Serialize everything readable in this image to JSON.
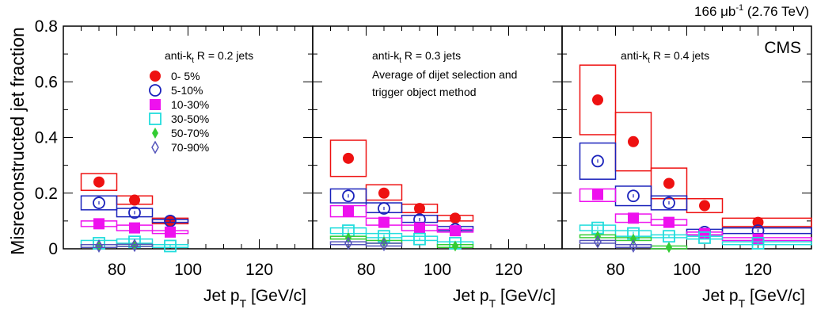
{
  "chart_data": {
    "type": "scatter",
    "ylabel": "Misreconstructed jet fraction",
    "ylim": [
      0,
      0.8
    ],
    "xlim": [
      65,
      135
    ],
    "y_ticks": [
      "0",
      "0.2",
      "0.4",
      "0.6",
      "0.8"
    ],
    "x_ticks": [
      "80",
      "100",
      "120"
    ],
    "xlabel_parts": {
      "main": "Jet p",
      "sub": "T",
      "rest": " [GeV/c]"
    },
    "lumi": {
      "value": "166 μb",
      "sup": "-1",
      "energy": " (2.76 TeV)"
    },
    "experiment": "CMS",
    "legend": {
      "placement": "top-left of first panel",
      "entries": [
        {
          "label": "0- 5%",
          "marker": "filled-circle",
          "color": "#ee1111"
        },
        {
          "label": "5-10%",
          "marker": "open-circle",
          "color": "#1a22bb"
        },
        {
          "label": "10-30%",
          "marker": "filled-square",
          "color": "#ee11ee"
        },
        {
          "label": "30-50%",
          "marker": "open-square",
          "color": "#22dddd"
        },
        {
          "label": "50-70%",
          "marker": "filled-diamond",
          "color": "#33cc33"
        },
        {
          "label": "70-90%",
          "marker": "open-diamond",
          "color": "#5555bb"
        }
      ]
    },
    "panels": [
      {
        "jet_label": {
          "pre": "anti-k",
          "sub": "t",
          "post": " R = 0.2 jets"
        },
        "notes": [],
        "series": [
          {
            "name": "0- 5%",
            "points": [
              {
                "x": 75,
                "y": 0.24,
                "xlo": 70,
                "xhi": 80,
                "ylo": 0.21,
                "yhi": 0.27
              },
              {
                "x": 85,
                "y": 0.175,
                "xlo": 80,
                "xhi": 90,
                "ylo": 0.16,
                "yhi": 0.19
              },
              {
                "x": 95,
                "y": 0.1,
                "xlo": 90,
                "xhi": 100,
                "ylo": 0.09,
                "yhi": 0.11
              }
            ]
          },
          {
            "name": "5-10%",
            "points": [
              {
                "x": 75,
                "y": 0.165,
                "xlo": 70,
                "xhi": 80,
                "ylo": 0.14,
                "yhi": 0.19
              },
              {
                "x": 85,
                "y": 0.13,
                "xlo": 80,
                "xhi": 90,
                "ylo": 0.115,
                "yhi": 0.145
              },
              {
                "x": 95,
                "y": 0.1,
                "xlo": 90,
                "xhi": 100,
                "ylo": 0.095,
                "yhi": 0.105
              }
            ]
          },
          {
            "name": "10-30%",
            "points": [
              {
                "x": 75,
                "y": 0.09,
                "xlo": 70,
                "xhi": 80,
                "ylo": 0.08,
                "yhi": 0.1
              },
              {
                "x": 85,
                "y": 0.075,
                "xlo": 80,
                "xhi": 90,
                "ylo": 0.065,
                "yhi": 0.085
              },
              {
                "x": 95,
                "y": 0.06,
                "xlo": 90,
                "xhi": 100,
                "ylo": 0.055,
                "yhi": 0.065
              }
            ]
          },
          {
            "name": "30-50%",
            "points": [
              {
                "x": 75,
                "y": 0.02,
                "xlo": 70,
                "xhi": 80,
                "ylo": 0.015,
                "yhi": 0.03
              },
              {
                "x": 85,
                "y": 0.025,
                "xlo": 80,
                "xhi": 90,
                "ylo": 0.02,
                "yhi": 0.035
              },
              {
                "x": 95,
                "y": 0.01,
                "xlo": 90,
                "xhi": 100,
                "ylo": 0.005,
                "yhi": 0.015
              }
            ]
          },
          {
            "name": "50-70%",
            "points": [
              {
                "x": 75,
                "y": 0.01,
                "xlo": 70,
                "xhi": 80,
                "ylo": 0.005,
                "yhi": 0.015
              },
              {
                "x": 85,
                "y": 0.012,
                "xlo": 80,
                "xhi": 90,
                "ylo": 0.008,
                "yhi": 0.016
              }
            ]
          },
          {
            "name": "70-90%",
            "points": [
              {
                "x": 75,
                "y": 0.01,
                "xlo": 70,
                "xhi": 80,
                "ylo": 0.005,
                "yhi": 0.015
              },
              {
                "x": 85,
                "y": 0.012,
                "xlo": 80,
                "xhi": 90,
                "ylo": 0.008,
                "yhi": 0.016
              }
            ]
          }
        ]
      },
      {
        "jet_label": {
          "pre": "anti-k",
          "sub": "t",
          "post": " R = 0.3 jets"
        },
        "notes": [
          "Average of dijet selection and",
          "trigger object method"
        ],
        "series": [
          {
            "name": "0- 5%",
            "points": [
              {
                "x": 75,
                "y": 0.325,
                "xlo": 70,
                "xhi": 80,
                "ylo": 0.26,
                "yhi": 0.39
              },
              {
                "x": 85,
                "y": 0.2,
                "xlo": 80,
                "xhi": 90,
                "ylo": 0.175,
                "yhi": 0.23
              },
              {
                "x": 95,
                "y": 0.145,
                "xlo": 90,
                "xhi": 100,
                "ylo": 0.13,
                "yhi": 0.16
              },
              {
                "x": 105,
                "y": 0.11,
                "xlo": 100,
                "xhi": 110,
                "ylo": 0.1,
                "yhi": 0.12
              }
            ]
          },
          {
            "name": "5-10%",
            "points": [
              {
                "x": 75,
                "y": 0.19,
                "xlo": 70,
                "xhi": 80,
                "ylo": 0.165,
                "yhi": 0.215
              },
              {
                "x": 85,
                "y": 0.145,
                "xlo": 80,
                "xhi": 90,
                "ylo": 0.13,
                "yhi": 0.165
              },
              {
                "x": 95,
                "y": 0.105,
                "xlo": 90,
                "xhi": 100,
                "ylo": 0.095,
                "yhi": 0.12
              },
              {
                "x": 105,
                "y": 0.07,
                "xlo": 100,
                "xhi": 110,
                "ylo": 0.065,
                "yhi": 0.08
              }
            ]
          },
          {
            "name": "10-30%",
            "points": [
              {
                "x": 75,
                "y": 0.135,
                "xlo": 70,
                "xhi": 80,
                "ylo": 0.115,
                "yhi": 0.155
              },
              {
                "x": 85,
                "y": 0.095,
                "xlo": 80,
                "xhi": 90,
                "ylo": 0.085,
                "yhi": 0.11
              },
              {
                "x": 95,
                "y": 0.075,
                "xlo": 90,
                "xhi": 100,
                "ylo": 0.065,
                "yhi": 0.085
              },
              {
                "x": 105,
                "y": 0.065,
                "xlo": 100,
                "xhi": 110,
                "ylo": 0.06,
                "yhi": 0.07
              }
            ]
          },
          {
            "name": "30-50%",
            "points": [
              {
                "x": 75,
                "y": 0.065,
                "xlo": 70,
                "xhi": 80,
                "ylo": 0.055,
                "yhi": 0.075
              },
              {
                "x": 85,
                "y": 0.045,
                "xlo": 80,
                "xhi": 90,
                "ylo": 0.04,
                "yhi": 0.055
              },
              {
                "x": 95,
                "y": 0.035,
                "xlo": 90,
                "xhi": 100,
                "ylo": 0.03,
                "yhi": 0.045
              },
              {
                "x": 105,
                "y": 0.02,
                "xlo": 100,
                "xhi": 110,
                "ylo": 0.015,
                "yhi": 0.025
              }
            ]
          },
          {
            "name": "50-70%",
            "points": [
              {
                "x": 75,
                "y": 0.04,
                "xlo": 70,
                "xhi": 80,
                "ylo": 0.035,
                "yhi": 0.045
              },
              {
                "x": 85,
                "y": 0.025,
                "xlo": 80,
                "xhi": 90,
                "ylo": 0.02,
                "yhi": 0.03
              },
              {
                "x": 105,
                "y": 0.01,
                "xlo": 100,
                "xhi": 110,
                "ylo": 0.005,
                "yhi": 0.015
              }
            ]
          },
          {
            "name": "70-90%",
            "points": [
              {
                "x": 75,
                "y": 0.02,
                "xlo": 70,
                "xhi": 80,
                "ylo": 0.015,
                "yhi": 0.025
              },
              {
                "x": 85,
                "y": 0.015,
                "xlo": 80,
                "xhi": 90,
                "ylo": 0.01,
                "yhi": 0.02
              }
            ]
          }
        ]
      },
      {
        "jet_label": {
          "pre": "anti-k",
          "sub": "t",
          "post": " R = 0.4 jets"
        },
        "notes": [],
        "series": [
          {
            "name": "0- 5%",
            "points": [
              {
                "x": 75,
                "y": 0.535,
                "xlo": 70,
                "xhi": 80,
                "ylo": 0.41,
                "yhi": 0.66
              },
              {
                "x": 85,
                "y": 0.385,
                "xlo": 80,
                "xhi": 90,
                "ylo": 0.28,
                "yhi": 0.49
              },
              {
                "x": 95,
                "y": 0.235,
                "xlo": 90,
                "xhi": 100,
                "ylo": 0.18,
                "yhi": 0.29
              },
              {
                "x": 105,
                "y": 0.155,
                "xlo": 100,
                "xhi": 110,
                "ylo": 0.13,
                "yhi": 0.18
              },
              {
                "x": 120,
                "y": 0.095,
                "xlo": 110,
                "xhi": 135,
                "ylo": 0.08,
                "yhi": 0.11
              }
            ]
          },
          {
            "name": "5-10%",
            "points": [
              {
                "x": 75,
                "y": 0.315,
                "xlo": 70,
                "xhi": 80,
                "ylo": 0.25,
                "yhi": 0.38
              },
              {
                "x": 85,
                "y": 0.19,
                "xlo": 80,
                "xhi": 90,
                "ylo": 0.155,
                "yhi": 0.225
              },
              {
                "x": 95,
                "y": 0.165,
                "xlo": 90,
                "xhi": 100,
                "ylo": 0.14,
                "yhi": 0.19
              },
              {
                "x": 105,
                "y": 0.06,
                "xlo": 100,
                "xhi": 110,
                "ylo": 0.05,
                "yhi": 0.07
              },
              {
                "x": 120,
                "y": 0.065,
                "xlo": 110,
                "xhi": 135,
                "ylo": 0.055,
                "yhi": 0.075
              }
            ]
          },
          {
            "name": "10-30%",
            "points": [
              {
                "x": 75,
                "y": 0.195,
                "xlo": 70,
                "xhi": 80,
                "ylo": 0.17,
                "yhi": 0.215
              },
              {
                "x": 85,
                "y": 0.11,
                "xlo": 80,
                "xhi": 90,
                "ylo": 0.095,
                "yhi": 0.125
              },
              {
                "x": 95,
                "y": 0.095,
                "xlo": 90,
                "xhi": 100,
                "ylo": 0.085,
                "yhi": 0.105
              },
              {
                "x": 105,
                "y": 0.055,
                "xlo": 100,
                "xhi": 110,
                "ylo": 0.05,
                "yhi": 0.06
              },
              {
                "x": 120,
                "y": 0.035,
                "xlo": 110,
                "xhi": 135,
                "ylo": 0.03,
                "yhi": 0.04
              }
            ]
          },
          {
            "name": "30-50%",
            "points": [
              {
                "x": 75,
                "y": 0.075,
                "xlo": 70,
                "xhi": 80,
                "ylo": 0.065,
                "yhi": 0.085
              },
              {
                "x": 85,
                "y": 0.055,
                "xlo": 80,
                "xhi": 90,
                "ylo": 0.045,
                "yhi": 0.065
              },
              {
                "x": 95,
                "y": 0.045,
                "xlo": 90,
                "xhi": 100,
                "ylo": 0.04,
                "yhi": 0.05
              },
              {
                "x": 105,
                "y": 0.04,
                "xlo": 100,
                "xhi": 110,
                "ylo": 0.035,
                "yhi": 0.045
              },
              {
                "x": 120,
                "y": 0.02,
                "xlo": 110,
                "xhi": 135,
                "ylo": 0.015,
                "yhi": 0.025
              }
            ]
          },
          {
            "name": "50-70%",
            "points": [
              {
                "x": 75,
                "y": 0.045,
                "xlo": 70,
                "xhi": 80,
                "ylo": 0.04,
                "yhi": 0.05
              },
              {
                "x": 85,
                "y": 0.035,
                "xlo": 80,
                "xhi": 90,
                "ylo": 0.03,
                "yhi": 0.04
              },
              {
                "x": 95,
                "y": 0.005,
                "xlo": 90,
                "xhi": 100,
                "ylo": 0.0,
                "yhi": 0.01
              }
            ]
          },
          {
            "name": "70-90%",
            "points": [
              {
                "x": 75,
                "y": 0.025,
                "xlo": 70,
                "xhi": 80,
                "ylo": 0.02,
                "yhi": 0.03
              },
              {
                "x": 85,
                "y": 0.01,
                "xlo": 80,
                "xhi": 90,
                "ylo": 0.005,
                "yhi": 0.015
              }
            ]
          }
        ]
      }
    ]
  }
}
